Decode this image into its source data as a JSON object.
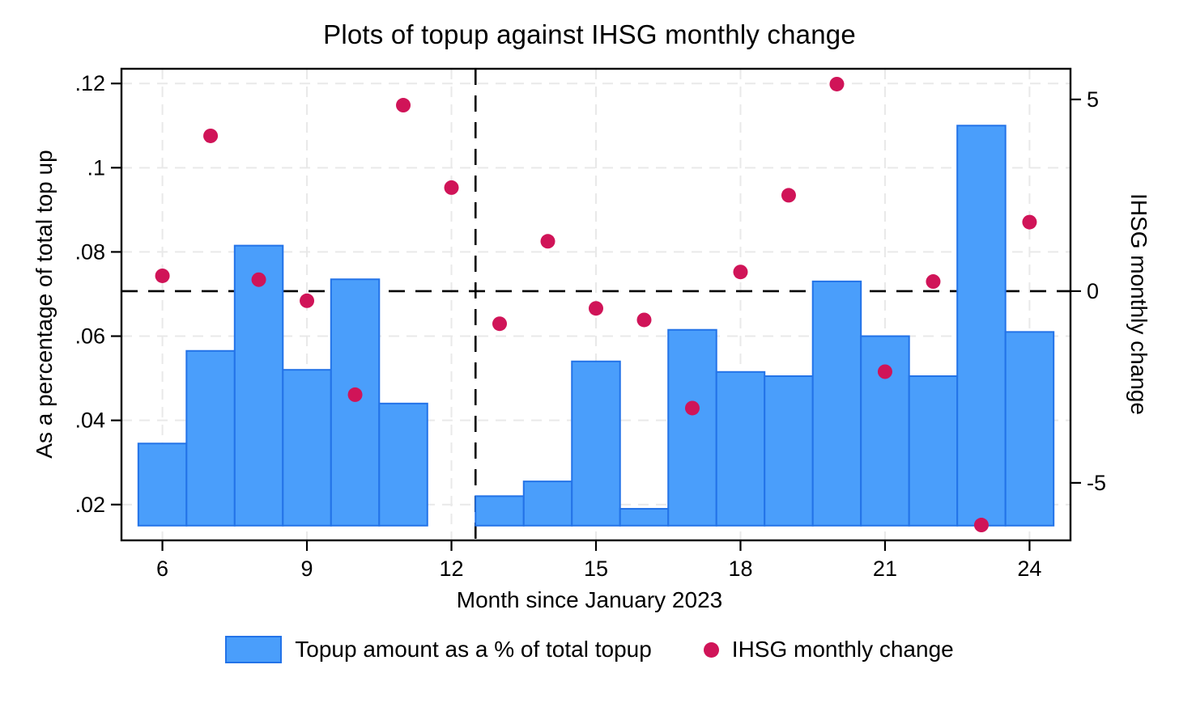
{
  "title": "Plots of topup against IHSG monthly change",
  "colors": {
    "bar_fill": "#4a9efb",
    "bar_stroke": "#2373e8",
    "dot": "#d01458",
    "grid": "#e9e9e9",
    "ref_line": "#000000",
    "frame": "#000000"
  },
  "chart_data": {
    "type": "bar+scatter",
    "title": "Plots of topup against IHSG monthly change",
    "xlabel": "Month since January 2023",
    "ylabel_left": "As a percentage of total top up",
    "ylabel_right": "IHSG monthly change",
    "x": [
      6,
      7,
      8,
      9,
      10,
      11,
      12,
      13,
      14,
      15,
      16,
      17,
      18,
      19,
      20,
      21,
      22,
      23,
      24
    ],
    "series": [
      {
        "name": "Topup amount as a % of total topup",
        "type": "bar",
        "axis": "left",
        "values": [
          0.0345,
          0.0565,
          0.0815,
          0.052,
          0.0735,
          0.044,
          null,
          0.022,
          0.0255,
          0.054,
          0.019,
          0.0615,
          0.0515,
          0.0505,
          0.073,
          0.06,
          0.0505,
          0.11,
          0.061
        ]
      },
      {
        "name": "IHSG monthly change",
        "type": "scatter",
        "axis": "right",
        "values": [
          0.4,
          4.05,
          0.3,
          -0.25,
          -2.7,
          4.85,
          2.7,
          -0.85,
          1.3,
          -0.45,
          -0.75,
          -3.05,
          0.5,
          2.5,
          5.4,
          -2.1,
          0.25,
          -6.1,
          1.8
        ]
      }
    ],
    "bar_baseline": 0.015,
    "xlim": [
      5.15,
      24.85
    ],
    "ylim_left": [
      0.0115,
      0.1235
    ],
    "ylim_right": [
      -6.5,
      5.8
    ],
    "xticks": [
      {
        "value": 6,
        "label": "6"
      },
      {
        "value": 9,
        "label": "9"
      },
      {
        "value": 12,
        "label": "12"
      },
      {
        "value": 15,
        "label": "15"
      },
      {
        "value": 18,
        "label": "18"
      },
      {
        "value": 21,
        "label": "21"
      },
      {
        "value": 24,
        "label": "24"
      }
    ],
    "yticks_left": [
      {
        "value": 0.02,
        "label": ".02"
      },
      {
        "value": 0.04,
        "label": ".04"
      },
      {
        "value": 0.06,
        "label": ".06"
      },
      {
        "value": 0.08,
        "label": ".08"
      },
      {
        "value": 0.1,
        "label": ".1"
      },
      {
        "value": 0.12,
        "label": ".12"
      }
    ],
    "yticks_right": [
      {
        "value": -5,
        "label": "-5"
      },
      {
        "value": 0,
        "label": "0"
      },
      {
        "value": 5,
        "label": "5"
      }
    ],
    "ref_lines": {
      "horizontal_right_value": 0,
      "vertical_x_value": 12.5
    },
    "grid": true,
    "legend_position": "bottom"
  }
}
